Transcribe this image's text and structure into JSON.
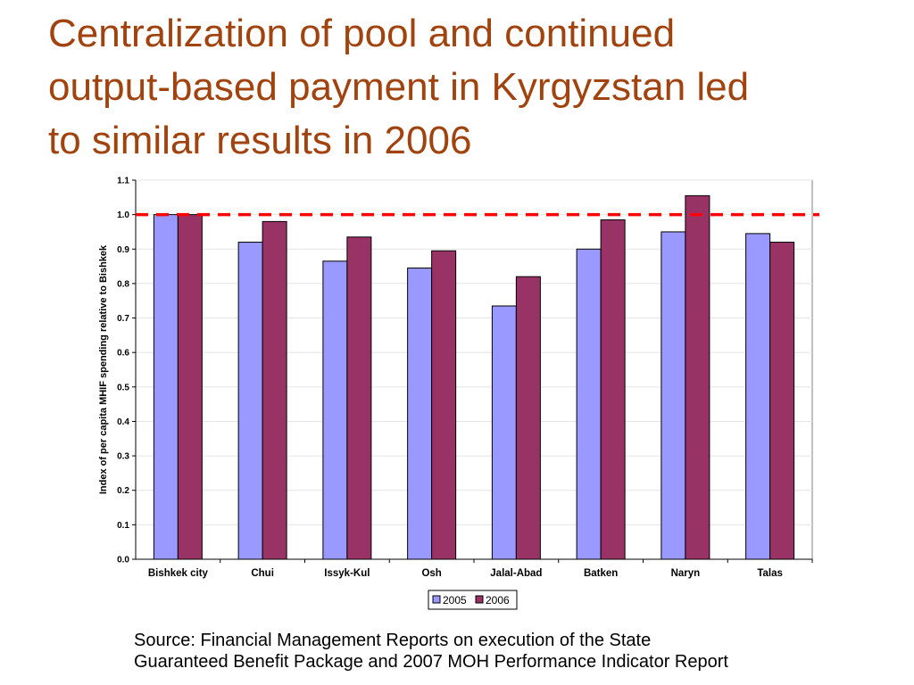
{
  "slide": {
    "title_lines": [
      "Centralization of pool and continued",
      "output-based payment in Kyrgyzstan led",
      "to similar results in 2006"
    ],
    "source_lines": [
      "Source:  Financial Management Reports on execution of the State",
      "Guaranteed Benefit Package and 2007 MOH Performance Indicator Report"
    ]
  },
  "colors": {
    "title": "#a0430f",
    "series_2005": "#9999ff",
    "series_2006": "#993366",
    "reference_line": "#ff0000"
  },
  "chart_data": {
    "type": "bar",
    "title": "",
    "xlabel": "",
    "ylabel": "Index of per capita MHIF spending relative to Bishkek",
    "ylim": [
      0,
      1.1
    ],
    "yticks": [
      "0.0",
      "0.1",
      "0.2",
      "0.3",
      "0.4",
      "0.5",
      "0.6",
      "0.7",
      "0.8",
      "0.9",
      "1.0",
      "1.1"
    ],
    "grid": true,
    "legend": "bottom",
    "categories": [
      "Bishkek city",
      "Chui",
      "Issyk-Kul",
      "Osh",
      "Jalal-Abad",
      "Batken",
      "Naryn",
      "Talas"
    ],
    "series": [
      {
        "name": "2005",
        "values": [
          1.0,
          0.92,
          0.865,
          0.845,
          0.735,
          0.9,
          0.95,
          0.945
        ]
      },
      {
        "name": "2006",
        "values": [
          1.0,
          0.98,
          0.935,
          0.895,
          0.82,
          0.985,
          1.055,
          0.92
        ]
      }
    ],
    "reference_line": {
      "y": 1.0,
      "style": "dashed"
    }
  }
}
